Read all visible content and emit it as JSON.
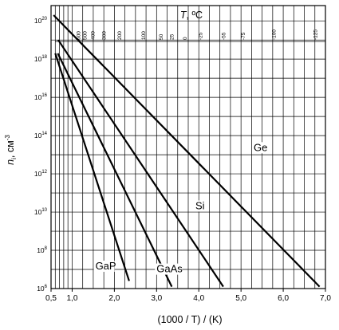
{
  "chart_data": {
    "type": "line",
    "title": "",
    "xlabel": "(1000 / T) / (K)",
    "ylabel": "n_i, см^-3",
    "ylabel_parts": {
      "symbol": "n",
      "subscript": "i",
      "unit": ", см",
      "exponent": "-3"
    },
    "xlim": [
      0.5,
      7.0
    ],
    "ylim_log10": [
      6,
      20.8
    ],
    "y_scale": "log",
    "grid": true,
    "x_ticks": [
      {
        "value": 0.5,
        "label": "0,5"
      },
      {
        "value": 1.0,
        "label": "1,0"
      },
      {
        "value": 2.0,
        "label": "2,0"
      },
      {
        "value": 3.0,
        "label": "3,0"
      },
      {
        "value": 4.0,
        "label": "4,0"
      },
      {
        "value": 5.0,
        "label": "5,0"
      },
      {
        "value": 6.0,
        "label": "6,0"
      },
      {
        "value": 7.0,
        "label": "7,0"
      }
    ],
    "y_ticks": [
      {
        "exp": 6,
        "base": "10",
        "sup": "6"
      },
      {
        "exp": 8,
        "base": "10",
        "sup": "8"
      },
      {
        "exp": 10,
        "base": "10",
        "sup": "10"
      },
      {
        "exp": 12,
        "base": "10",
        "sup": "12"
      },
      {
        "exp": 14,
        "base": "10",
        "sup": "14"
      },
      {
        "exp": 16,
        "base": "10",
        "sup": "16"
      },
      {
        "exp": 18,
        "base": "10",
        "sup": "18"
      },
      {
        "exp": 20,
        "base": "10",
        "sup": "20"
      }
    ],
    "top_axis": {
      "title_symbol": "T",
      "title_unit": ", ºC",
      "ticks": [
        {
          "label": "600",
          "celsius": 600
        },
        {
          "label": "500",
          "celsius": 500
        },
        {
          "label": "400",
          "celsius": 400
        },
        {
          "label": "300",
          "celsius": 300
        },
        {
          "label": "200",
          "celsius": 200
        },
        {
          "label": "100",
          "celsius": 100
        },
        {
          "label": "50",
          "celsius": 50
        },
        {
          "label": "25",
          "celsius": 25
        },
        {
          "label": "0",
          "celsius": 0
        },
        {
          "label": "-25",
          "celsius": -25
        },
        {
          "label": "-55",
          "celsius": -55
        },
        {
          "label": "-75",
          "celsius": -75
        },
        {
          "label": "-100",
          "celsius": -100
        },
        {
          "label": "-125",
          "celsius": -125
        }
      ]
    },
    "series": [
      {
        "name": "Ge",
        "x": [
          0.56,
          6.86
        ],
        "log10_y": [
          20.3,
          6.1
        ]
      },
      {
        "name": "Si",
        "x": [
          0.67,
          4.58
        ],
        "log10_y": [
          19.0,
          6.1
        ]
      },
      {
        "name": "GaAs",
        "x": [
          0.66,
          3.36
        ],
        "log10_y": [
          18.3,
          6.1
        ]
      },
      {
        "name": "GaP",
        "x": [
          0.6,
          2.35
        ],
        "log10_y": [
          18.3,
          6.4
        ]
      }
    ],
    "series_labels": [
      {
        "name": "Ge",
        "at_x": 5.3,
        "at_log10_y": 13.2
      },
      {
        "name": "Si",
        "at_x": 3.92,
        "at_log10_y": 10.15
      },
      {
        "name": "GaAs",
        "at_x": 3.0,
        "at_log10_y": 6.85
      },
      {
        "name": "GaP",
        "at_x": 1.55,
        "at_log10_y": 7.0
      }
    ]
  }
}
